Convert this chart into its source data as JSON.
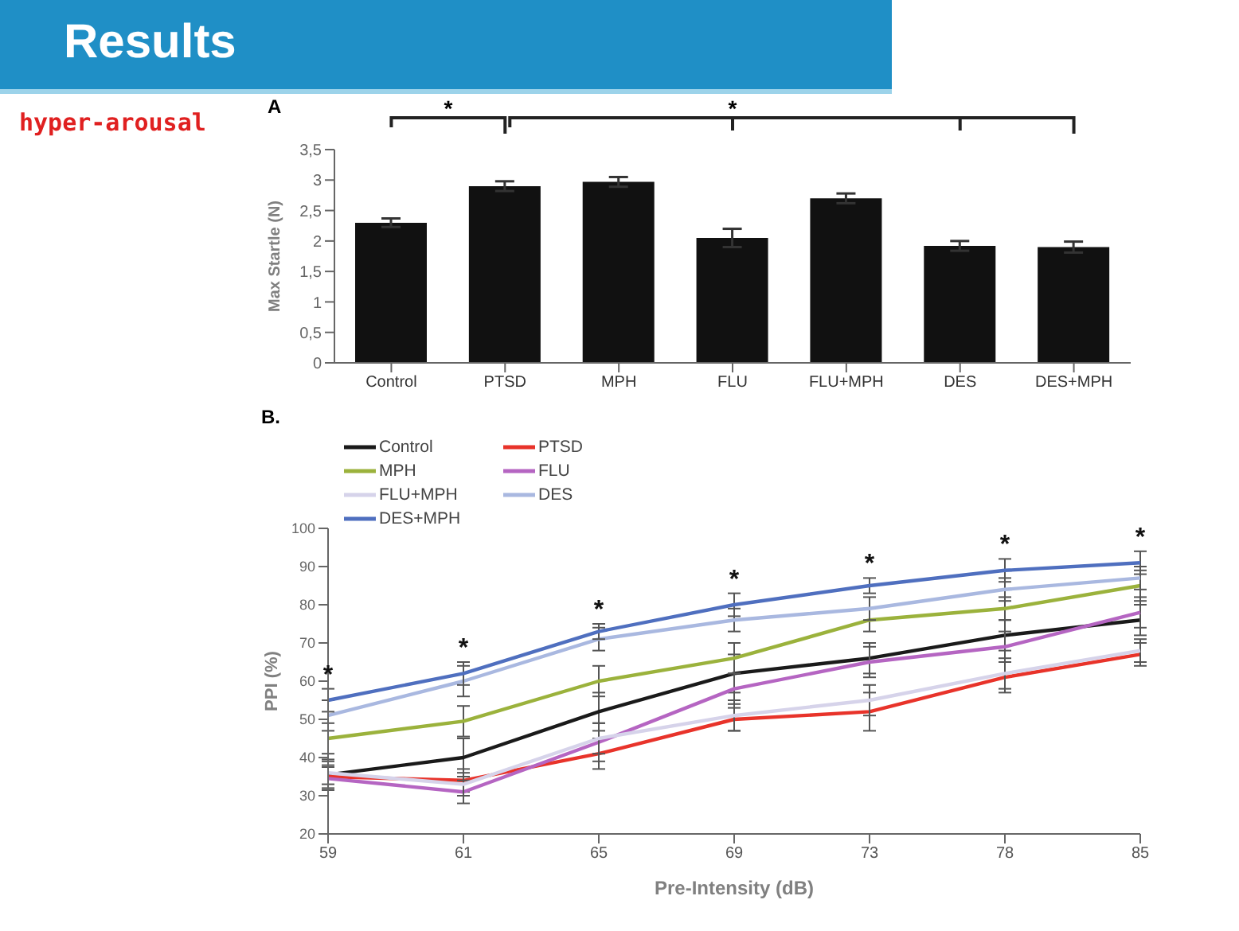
{
  "chart_data": [
    {
      "type": "bar",
      "title": "A",
      "annotations": [
        "Results",
        "hyper-arousal",
        "*",
        "*"
      ],
      "ylabel": "Max Startle (N)",
      "categories": [
        "Control",
        "PTSD",
        "MPH",
        "FLU",
        "FLU+MPH",
        "DES",
        "DES+MPH"
      ],
      "values": [
        2.3,
        2.9,
        2.97,
        2.05,
        2.7,
        1.92,
        1.9
      ],
      "errors": [
        0.07,
        0.08,
        0.08,
        0.15,
        0.08,
        0.08,
        0.09
      ],
      "color": "#111111",
      "ylim": [
        0,
        3.5
      ],
      "yticks": [
        0,
        {
          "value": 0.5,
          "label": "0,5"
        },
        1,
        {
          "value": 1.5,
          "label": "1,5"
        },
        2,
        {
          "value": 2.5,
          "label": "2,5"
        },
        3,
        {
          "value": 3.5,
          "label": "3,5"
        }
      ],
      "grid": false
    },
    {
      "type": "line",
      "title": "B.",
      "xlabel": "Pre-Intensity (dB)",
      "ylabel": "PPI (%)",
      "categories": [
        "59",
        "61",
        "65",
        "69",
        "73",
        "78",
        "85"
      ],
      "ylim": [
        20,
        100
      ],
      "yticks": [
        20,
        30,
        40,
        50,
        60,
        70,
        80,
        90,
        100
      ],
      "grid": false,
      "legend": "top left",
      "marker": "none",
      "series": [
        {
          "name": "Control",
          "color": "#1a1a1a",
          "values": [
            35.5,
            40,
            52,
            62,
            66,
            72,
            76
          ],
          "errors": [
            4,
            5,
            5,
            5,
            4,
            4,
            4
          ]
        },
        {
          "name": "PTSD",
          "color": "#e8332a",
          "values": [
            35,
            34,
            41,
            50,
            52,
            61,
            67
          ],
          "errors": [
            3,
            3,
            4,
            3,
            5,
            4,
            3
          ]
        },
        {
          "name": "MPH",
          "color": "#9bb23c",
          "values": [
            45,
            49.5,
            60,
            66,
            76,
            79,
            85
          ],
          "errors": [
            4,
            4,
            4,
            4,
            3,
            3,
            4
          ]
        },
        {
          "name": "FLU",
          "color": "#b565c2",
          "values": [
            34.5,
            31,
            44,
            58,
            65,
            69,
            78
          ],
          "errors": [
            3,
            3,
            5,
            4,
            4,
            4,
            4
          ]
        },
        {
          "name": "FLU+MPH",
          "color": "#d6d3ea",
          "values": [
            36,
            33,
            45,
            51,
            55,
            62,
            68
          ],
          "errors": [
            3,
            3,
            4,
            4,
            4,
            4,
            3
          ]
        },
        {
          "name": "DES",
          "color": "#a9b8e0",
          "values": [
            51,
            60,
            71,
            76,
            79,
            84,
            87
          ],
          "errors": [
            4,
            4,
            3,
            3,
            3,
            3,
            3
          ]
        },
        {
          "name": "DES+MPH",
          "color": "#4f6fbf",
          "values": [
            55,
            62,
            73,
            80,
            85,
            89,
            91
          ],
          "errors": [
            3,
            3,
            2,
            3,
            2,
            3,
            3
          ]
        }
      ],
      "annotations": [
        "*",
        "*",
        "*",
        "*",
        "*",
        "*",
        "*"
      ]
    }
  ]
}
